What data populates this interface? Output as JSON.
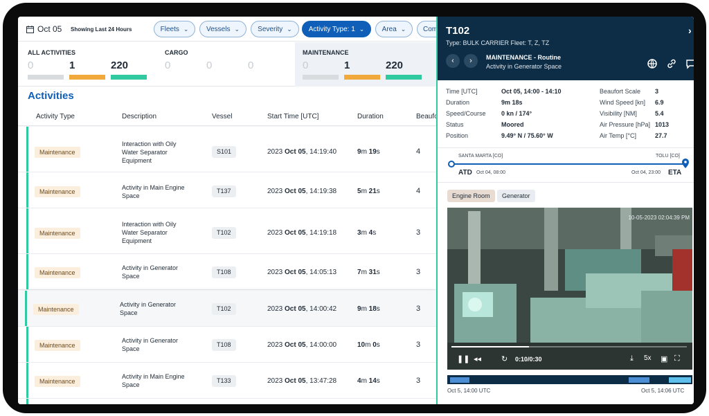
{
  "filters": {
    "date": "Oct 05",
    "showing": "Showing Last 24 Hours",
    "pills": [
      "Fleets",
      "Vessels",
      "Severity",
      "Activity Type: 1",
      "Area",
      "Com"
    ]
  },
  "summary": {
    "all": {
      "title": "ALL ACTIVITIES",
      "values": [
        "0",
        "1",
        "220"
      ]
    },
    "cargo": {
      "title": "CARGO",
      "values": [
        "0",
        "0",
        "0"
      ]
    },
    "maintenance": {
      "title": "MAINTENANCE",
      "values": [
        "0",
        "1",
        "220"
      ]
    }
  },
  "activities": {
    "title": "Activities",
    "columns": [
      "Activity Type",
      "Description",
      "Vessel",
      "Start Time [UTC]",
      "Duration",
      "Beaufo"
    ],
    "rows": [
      {
        "type": "Maintenance",
        "description": "Interaction with Oily Water Separator Equipment",
        "vessel": "S101",
        "start_year": "2023",
        "start_date": "Oct 05",
        "start_time": ", 14:19:40",
        "dur_a": "9",
        "dur_a_u": "m ",
        "dur_b": "19",
        "dur_b_u": "s",
        "beaufort": "4"
      },
      {
        "type": "Maintenance",
        "description": "Activity in Main Engine Space",
        "vessel": "T137",
        "start_year": "2023",
        "start_date": "Oct 05",
        "start_time": ", 14:19:38",
        "dur_a": "5",
        "dur_a_u": "m ",
        "dur_b": "21",
        "dur_b_u": "s",
        "beaufort": "4"
      },
      {
        "type": "Maintenance",
        "description": "Interaction with Oily Water Separator Equipment",
        "vessel": "T102",
        "start_year": "2023",
        "start_date": "Oct 05",
        "start_time": ", 14:19:18",
        "dur_a": "3",
        "dur_a_u": "m ",
        "dur_b": "4",
        "dur_b_u": "s",
        "beaufort": "3"
      },
      {
        "type": "Maintenance",
        "description": "Activity in Generator Space",
        "vessel": "T108",
        "start_year": "2023",
        "start_date": "Oct 05",
        "start_time": ", 14:05:13",
        "dur_a": "7",
        "dur_a_u": "m ",
        "dur_b": "31",
        "dur_b_u": "s",
        "beaufort": "3"
      },
      {
        "type": "Maintenance",
        "description": "Activity in Generator Space",
        "vessel": "T102",
        "start_year": "2023",
        "start_date": "Oct 05",
        "start_time": ", 14:00:42",
        "dur_a": "9",
        "dur_a_u": "m ",
        "dur_b": "18",
        "dur_b_u": "s",
        "beaufort": "3"
      },
      {
        "type": "Maintenance",
        "description": "Activity in Generator Space",
        "vessel": "T108",
        "start_year": "2023",
        "start_date": "Oct 05",
        "start_time": ", 14:00:00",
        "dur_a": "10",
        "dur_a_u": "m ",
        "dur_b": "0",
        "dur_b_u": "s",
        "beaufort": "3"
      },
      {
        "type": "Maintenance",
        "description": "Activity in Main Engine Space",
        "vessel": "T133",
        "start_year": "2023",
        "start_date": "Oct 05",
        "start_time": ", 13:47:28",
        "dur_a": "4",
        "dur_a_u": "m ",
        "dur_b": "14",
        "dur_b_u": "s",
        "beaufort": "3"
      }
    ]
  },
  "detail": {
    "vessel": "T102",
    "close": "›",
    "type_line": "Type: BULK CARRIER     Fleet: T, Z, TZ",
    "activity_kind": "MAINTENANCE - Routine",
    "activity_sub": "Activity in Generator Space",
    "prev": "‹",
    "next": "›",
    "fields_left": [
      {
        "label": "Time [UTC]",
        "value": "Oct 05, 14:00 - 14:10"
      },
      {
        "label": "Duration",
        "value": "9m 18s"
      },
      {
        "label": "Speed/Course",
        "value": "0 kn / 174°"
      },
      {
        "label": "Status",
        "value": "Moored"
      },
      {
        "label": "Position",
        "value": "9.49° N / 75.60° W"
      }
    ],
    "fields_right": [
      {
        "label": "Beaufort Scale",
        "value": "3"
      },
      {
        "label": "Wind Speed [kn]",
        "value": "6.9"
      },
      {
        "label": "Visibility [NM]",
        "value": "5.4"
      },
      {
        "label": "Air Pressure [hPa]",
        "value": "1013"
      },
      {
        "label": "Air Temp [°C]",
        "value": "27.7"
      }
    ],
    "route": {
      "from_port": "SANTA MARTA [CO]",
      "to_port": "TOLU [CO]",
      "atd": "ATD",
      "atd_time": "Oct 04, 08:00",
      "eta": "ETA",
      "eta_time": "Oct 04, 23:00"
    },
    "chips": [
      "Engine Room",
      "Generator"
    ],
    "video": {
      "timestamp": "10-05-2023 02:04:39 PM",
      "time": "0:10/0:30",
      "speed": "5x",
      "progress": 0.33
    },
    "timeline": {
      "start": "Oct 5, 14:00 UTC",
      "end": "Oct 5, 14:06 UTC"
    }
  },
  "colors": {
    "accent": "#0f5fb8",
    "green": "#31c9a0",
    "orange": "#f2a93b",
    "navy": "#0d2d46"
  }
}
